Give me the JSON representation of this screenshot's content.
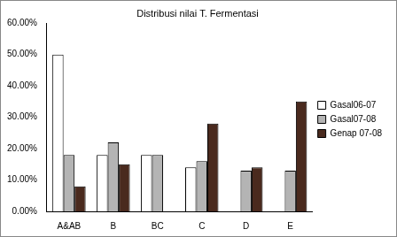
{
  "chart_data": {
    "type": "bar",
    "title": "Distribusi nilai T. Fermentasi",
    "categories": [
      "A&AB",
      "B",
      "BC",
      "C",
      "D",
      "E"
    ],
    "series": [
      {
        "name": "Gasal06-07",
        "color": "#ffffff",
        "values": [
          50,
          18,
          18,
          14,
          0,
          0
        ]
      },
      {
        "name": "Gasal07-08",
        "color": "#b4b4b4",
        "values": [
          18,
          22,
          18,
          16,
          13,
          13
        ]
      },
      {
        "name": "Genap 07-08",
        "color": "#4a2a1e",
        "values": [
          8,
          15,
          0,
          28,
          14,
          35
        ]
      }
    ],
    "ylim": [
      0,
      60
    ],
    "yticks": [
      {
        "value": 0,
        "label": "0.00%"
      },
      {
        "value": 10,
        "label": "10.00%"
      },
      {
        "value": 20,
        "label": "20.00%"
      },
      {
        "value": 30,
        "label": "30.00%"
      },
      {
        "value": 40,
        "label": "40.00%"
      },
      {
        "value": 50,
        "label": "50.00%"
      },
      {
        "value": 60,
        "label": "60.00%"
      }
    ],
    "grid": false,
    "legend": "right"
  }
}
